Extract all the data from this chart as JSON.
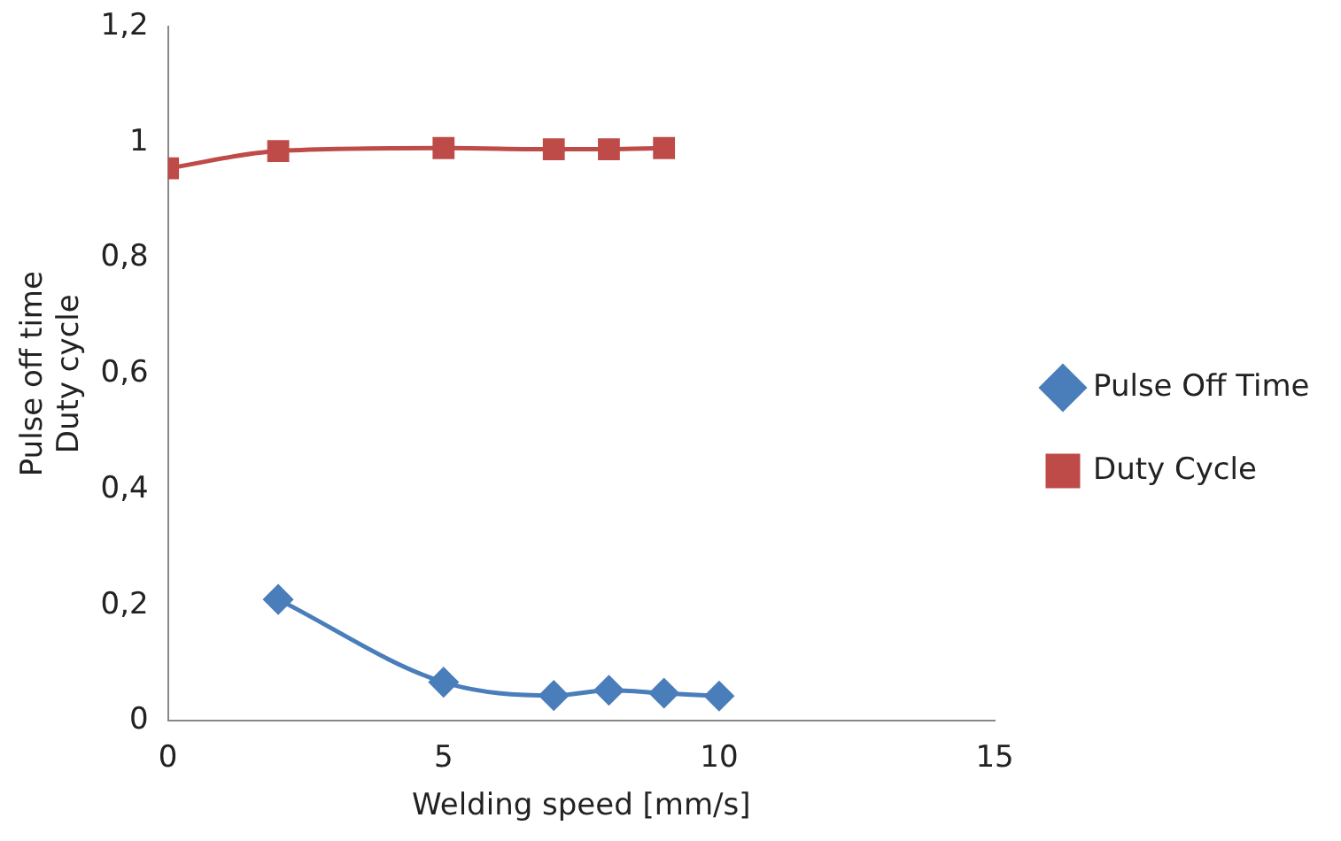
{
  "chart_data": {
    "type": "line",
    "xlabel": "Welding speed [mm/s]",
    "ylabel": "Pulse off time\nDuty cycle",
    "xlim": [
      0,
      15
    ],
    "xticks": [
      0,
      5,
      10,
      15
    ],
    "ylim": [
      0,
      1.2
    ],
    "yticks": [
      0,
      {
        "value": 0.2,
        "label": "0,2"
      },
      {
        "value": 0.4,
        "label": "0,4"
      },
      {
        "value": 0.6,
        "label": "0,6"
      },
      {
        "value": 0.8,
        "label": "0,8"
      },
      1,
      {
        "value": 1.2,
        "label": "1,2"
      }
    ],
    "grid": false,
    "legend": "right",
    "series": [
      {
        "name": "Pulse Off Time",
        "color": "#4a7ebb",
        "marker": "diamond",
        "x": [
          2,
          5,
          7,
          8,
          9,
          10
        ],
        "values": [
          0.21,
          0.067,
          0.044,
          0.053,
          0.048,
          0.043
        ]
      },
      {
        "name": "Duty Cycle",
        "color": "#be4b48",
        "marker": "square",
        "x": [
          0,
          2,
          5,
          7,
          8,
          9
        ],
        "values": [
          0.955,
          0.985,
          0.99,
          0.988,
          0.988,
          0.99
        ]
      }
    ]
  }
}
